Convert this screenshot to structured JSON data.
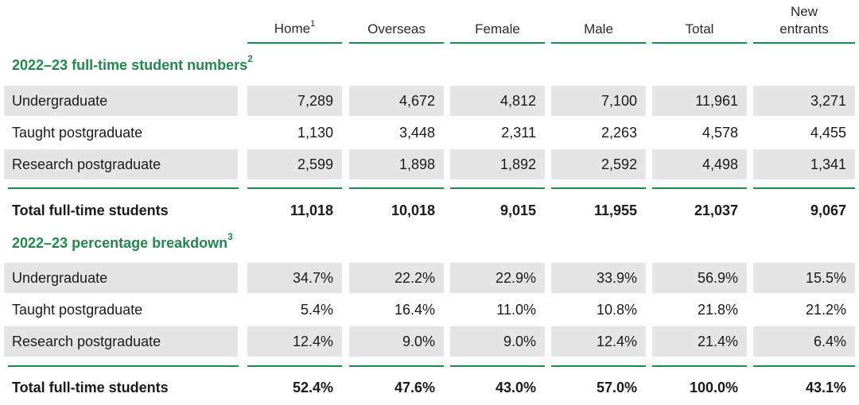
{
  "headers": [
    {
      "label": "Home",
      "sup": "1"
    },
    {
      "label": "Overseas",
      "sup": ""
    },
    {
      "label": "Female",
      "sup": ""
    },
    {
      "label": "Male",
      "sup": ""
    },
    {
      "label": "Total",
      "sup": ""
    },
    {
      "label": "New\nentrants",
      "sup": ""
    }
  ],
  "numbers": {
    "title": "2022–23 full-time student numbers",
    "title_sup": "2",
    "rows": [
      {
        "label": "Undergraduate",
        "values": [
          "7,289",
          "4,672",
          "4,812",
          "7,100",
          "11,961",
          "3,271"
        ]
      },
      {
        "label": "Taught postgraduate",
        "values": [
          "1,130",
          "3,448",
          "2,311",
          "2,263",
          "4,578",
          "4,455"
        ]
      },
      {
        "label": "Research postgraduate",
        "values": [
          "2,599",
          "1,898",
          "1,892",
          "2,592",
          "4,498",
          "1,341"
        ]
      }
    ],
    "total": {
      "label": "Total full-time students",
      "values": [
        "11,018",
        "10,018",
        "9,015",
        "11,955",
        "21,037",
        "9,067"
      ]
    }
  },
  "percentages": {
    "title": "2022–23 percentage breakdown",
    "title_sup": "3",
    "rows": [
      {
        "label": "Undergraduate",
        "values": [
          "34.7%",
          "22.2%",
          "22.9%",
          "33.9%",
          "56.9%",
          "15.5%"
        ]
      },
      {
        "label": "Taught postgraduate",
        "values": [
          "5.4%",
          "16.4%",
          "11.0%",
          "10.8%",
          "21.8%",
          "21.2%"
        ]
      },
      {
        "label": "Research postgraduate",
        "values": [
          "12.4%",
          "9.0%",
          "9.0%",
          "12.4%",
          "21.4%",
          "6.4%"
        ]
      }
    ],
    "total": {
      "label": "Total full-time students",
      "values": [
        "52.4%",
        "47.6%",
        "43.0%",
        "57.0%",
        "100.0%",
        "43.1%"
      ]
    }
  },
  "colors": {
    "accent": "#1f8a4c",
    "shade": "#e5e5e5"
  }
}
